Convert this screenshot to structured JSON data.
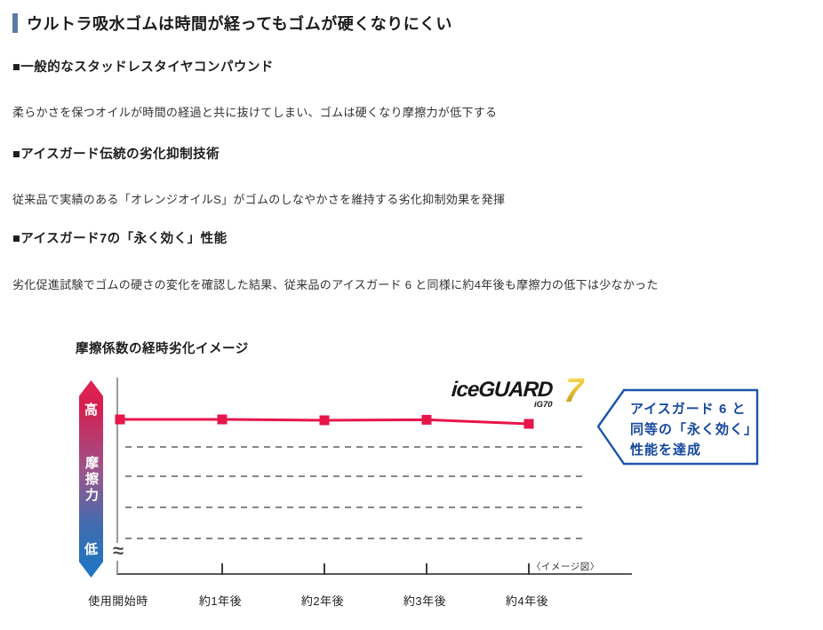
{
  "page": {
    "title": "ウルトラ吸水ゴムは時間が経ってもゴムが硬くなりにくい"
  },
  "sections": [
    {
      "heading": "■一般的なスタッドレスタイヤコンパウンド",
      "body": "柔らかさを保つオイルが時間の経過と共に抜けてしまい、ゴムは硬くなり摩擦力が低下する"
    },
    {
      "heading": "■アイスガード伝統の劣化抑制技術",
      "body": "従来品で実績のある「オレンジオイルS」がゴムのしなやかさを維持する劣化抑制効果を発揮"
    },
    {
      "heading": "■アイスガード7の「永く効く」性能",
      "body": "劣化促進試験でゴムの硬さの変化を確認した結果、従来品のアイスガード 6 と同様に約4年後も摩擦力の低下は少なかった"
    }
  ],
  "figure": {
    "title": "摩擦係数の経時劣化イメージ",
    "axis": {
      "high": "高",
      "label": "摩擦力",
      "low": "低",
      "break_symbol": "≈"
    },
    "note": "〈イメージ図〉",
    "logo": {
      "name": "iceGUARD",
      "seven": "7",
      "model": "iG70"
    },
    "callout": {
      "line1": "アイスガード 6 と",
      "line2": "同等の「永く効く」",
      "line3": "性能を達成"
    }
  },
  "chart_data": {
    "type": "line",
    "title": "摩擦係数の経時劣化イメージ",
    "x": [
      "使用開始時",
      "約1年後",
      "約2年後",
      "約3年後",
      "約4年後"
    ],
    "series": [
      {
        "name": "iceGUARD 7 (iG70)",
        "values": [
          100,
          100,
          99.5,
          99.8,
          97.5
        ]
      }
    ],
    "ylabel": "摩擦力",
    "y_axis_type": "qualitative 高→低 (axis break near bottom)",
    "grid": "4 horizontal dashed gridlines",
    "legend": "none (iceGUARD 7 logo shown above line)",
    "line_color": "#e6164b",
    "marker": "square",
    "annotation": "アイスガード 6 と同等の「永く効く」性能を達成",
    "footnote": "〈イメージ図〉"
  },
  "colors": {
    "title_accent_bar": "#5d7aa6",
    "line_crimson": "#e6164b",
    "arrow_gradient_top": "#e0234f",
    "arrow_gradient_bottom": "#1b76c4",
    "callout_blue": "#17489e",
    "logo_gold": "#d9a718"
  }
}
